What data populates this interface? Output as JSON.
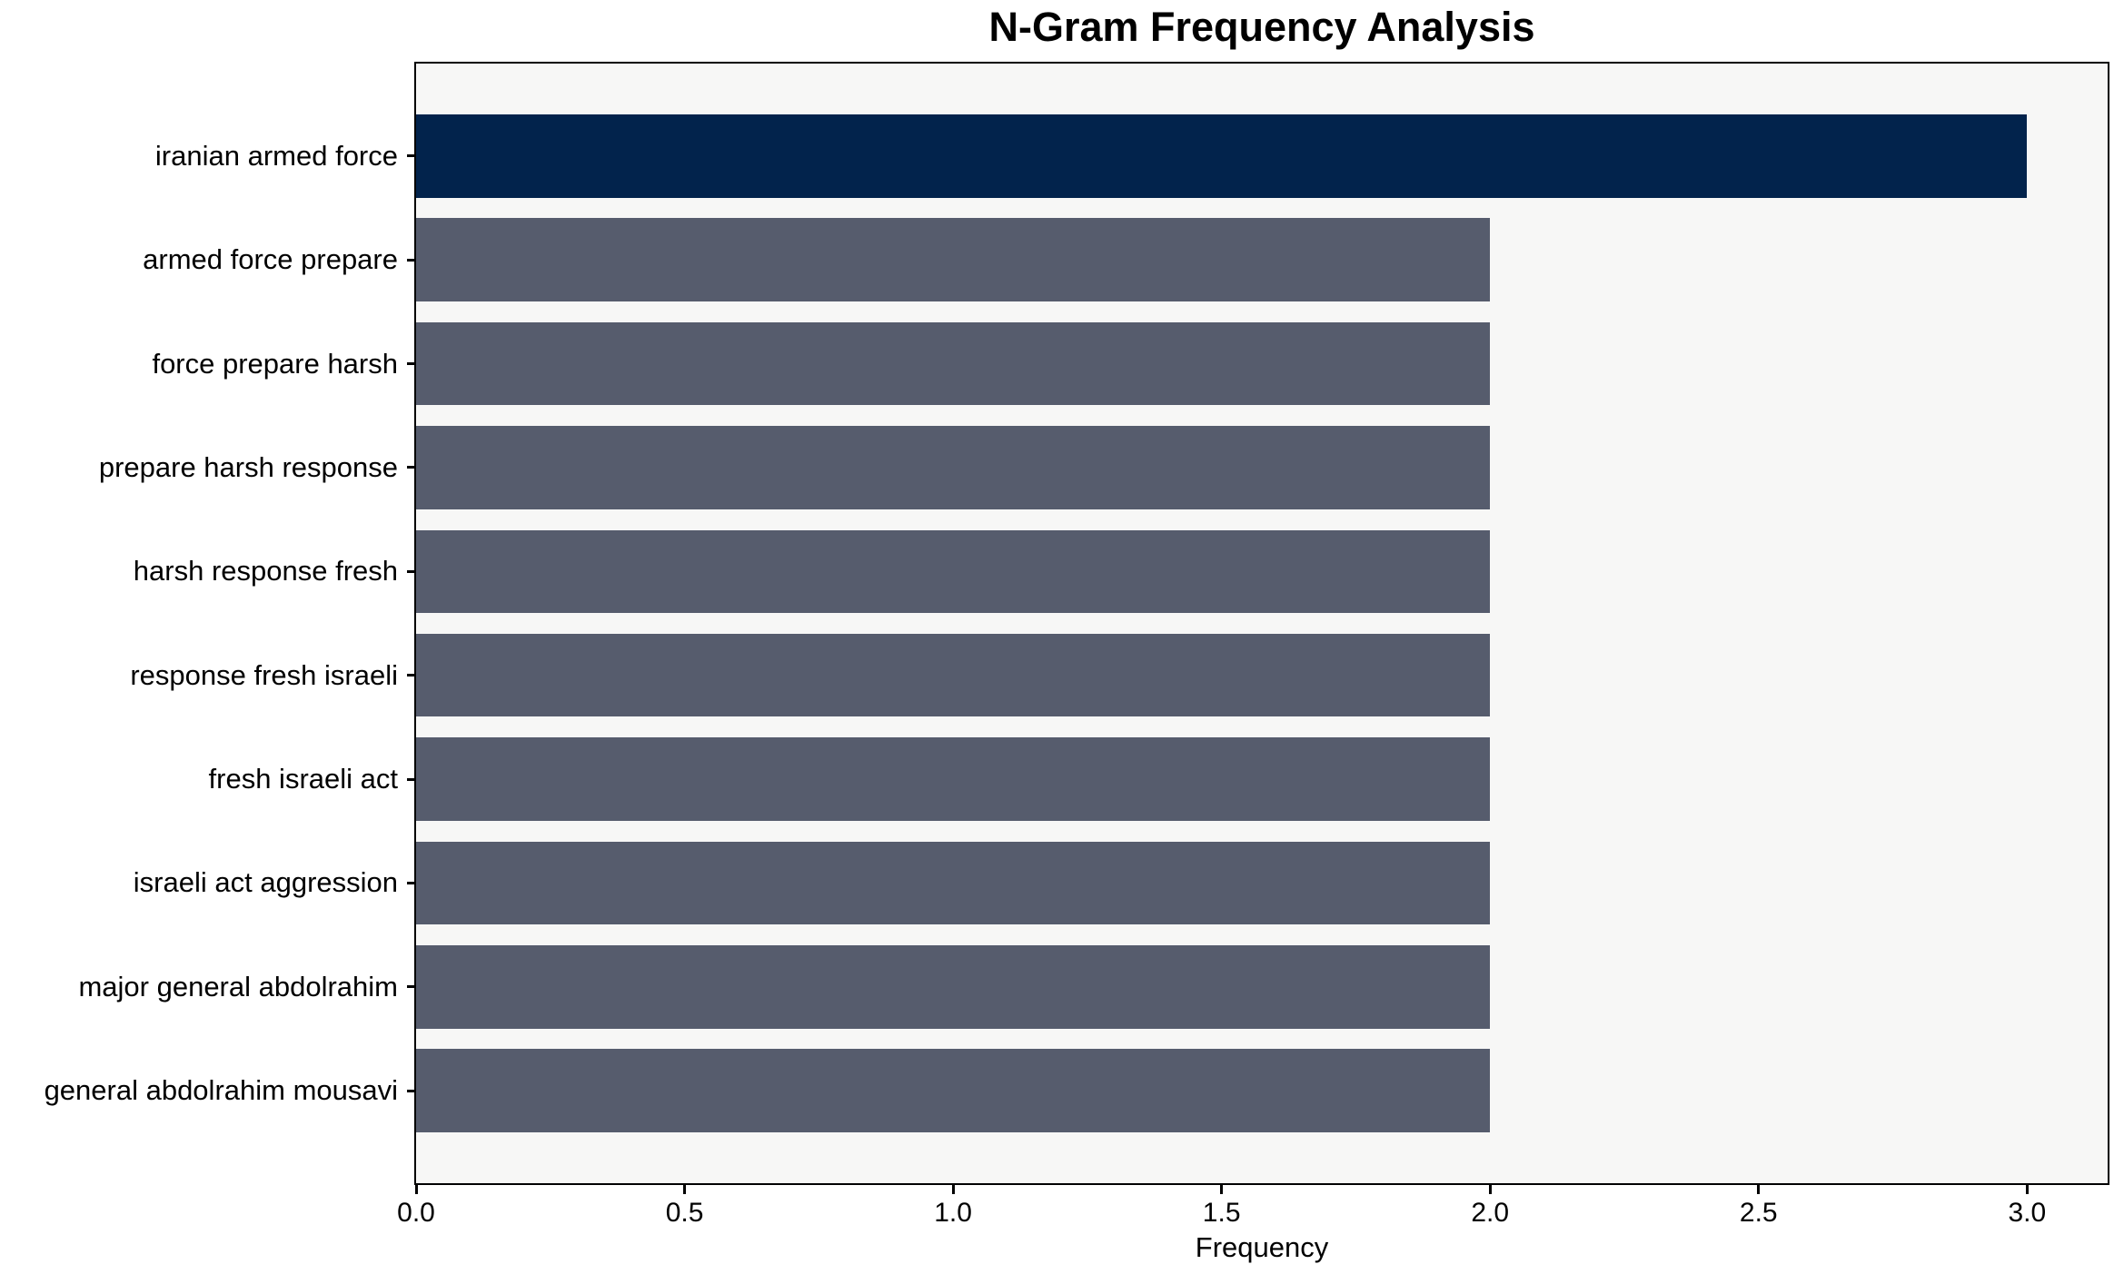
{
  "chart_data": {
    "type": "bar",
    "orientation": "horizontal",
    "title": "N-Gram Frequency Analysis",
    "xlabel": "Frequency",
    "ylabel": "",
    "categories": [
      "iranian armed force",
      "armed force prepare",
      "force prepare harsh",
      "prepare harsh response",
      "harsh response fresh",
      "response fresh israeli",
      "fresh israeli act",
      "israeli act aggression",
      "major general abdolrahim",
      "general abdolrahim mousavi"
    ],
    "values": [
      3,
      2,
      2,
      2,
      2,
      2,
      2,
      2,
      2,
      2
    ],
    "bar_colors": [
      "#02234C",
      "#565C6D",
      "#565C6D",
      "#565C6D",
      "#565C6D",
      "#565C6D",
      "#565C6D",
      "#565C6D",
      "#565C6D",
      "#565C6D"
    ],
    "highlight_color": "#02234C",
    "default_bar_color": "#565C6D",
    "plot_background": "#F7F7F6",
    "figure_background": "#FFFFFF",
    "spine_color": "#000000",
    "xlim": [
      0,
      3.15
    ],
    "ylim": [
      -0.89,
      9.89
    ],
    "bar_thickness": 0.8,
    "xticks": [
      {
        "value": 0.0,
        "label": "0.0"
      },
      {
        "value": 0.5,
        "label": "0.5"
      },
      {
        "value": 1.0,
        "label": "1.0"
      },
      {
        "value": 1.5,
        "label": "1.5"
      },
      {
        "value": 2.0,
        "label": "2.0"
      },
      {
        "value": 2.5,
        "label": "2.5"
      },
      {
        "value": 3.0,
        "label": "3.0"
      }
    ],
    "grid": false,
    "legend": false
  }
}
